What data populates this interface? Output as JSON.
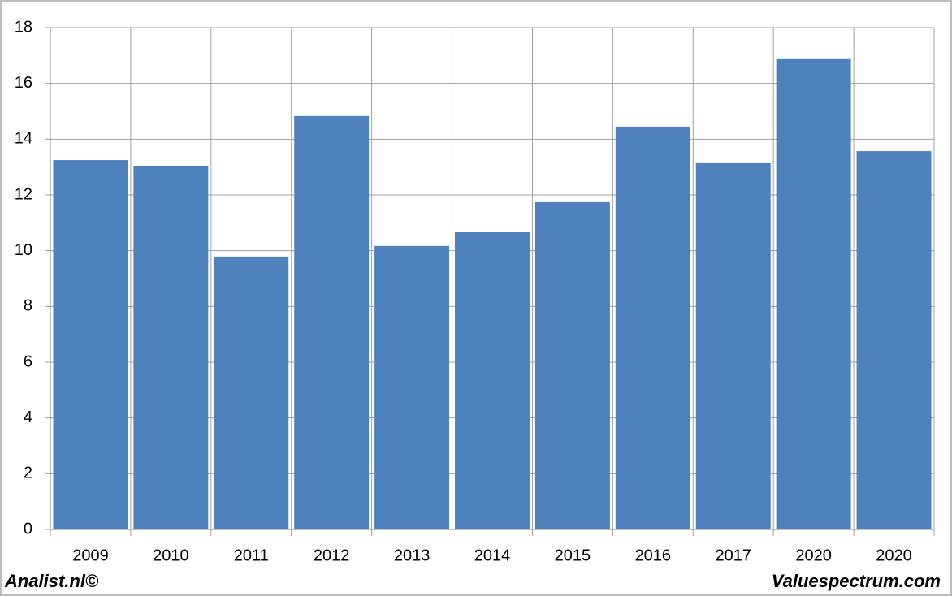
{
  "chart_data": {
    "type": "bar",
    "categories": [
      "2009",
      "2010",
      "2011",
      "2012",
      "2013",
      "2014",
      "2015",
      "2016",
      "2017",
      "2020",
      "2020"
    ],
    "values": [
      13.25,
      13.02,
      9.79,
      14.83,
      10.17,
      10.66,
      11.74,
      14.45,
      13.14,
      16.87,
      13.57
    ],
    "color": "#4f81bd",
    "ylim": [
      0,
      18
    ],
    "yticks": [
      0,
      2,
      4,
      6,
      8,
      10,
      12,
      14,
      16,
      18
    ],
    "grid": true,
    "footer_left": "Analist.nl©",
    "footer_right": "Valuespectrum.com"
  }
}
